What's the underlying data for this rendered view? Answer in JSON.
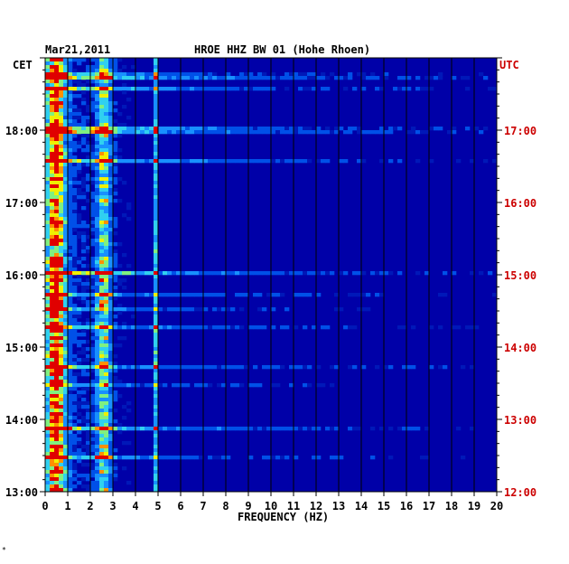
{
  "chart_data": {
    "type": "heatmap",
    "date": "Mar21,2011",
    "title": "HROE HHZ BW 01 (Hohe Rhoen)",
    "left_timezone": "CET",
    "right_timezone": "UTC",
    "xlabel": "FREQUENCY (HZ)",
    "x_ticks": [
      "0",
      "1",
      "2",
      "3",
      "4",
      "5",
      "6",
      "7",
      "8",
      "9",
      "10",
      "11",
      "12",
      "13",
      "14",
      "15",
      "16",
      "17",
      "18",
      "19",
      "20"
    ],
    "xlim": [
      0,
      20
    ],
    "left_ticks": [
      "13:00",
      "14:00",
      "15:00",
      "16:00",
      "17:00",
      "18:00"
    ],
    "right_ticks": [
      "12:00",
      "13:00",
      "14:00",
      "15:00",
      "16:00",
      "17:00"
    ],
    "time_range_cet": [
      "13:00",
      "18:50"
    ],
    "grid": true,
    "colors": {
      "background": "#0000a8",
      "low": "#0030d0",
      "mid": "#40a0ff",
      "high": "#f0f000",
      "peak": "#e00000",
      "utc_label": "#cc0000"
    },
    "dominant_bands_hz": [
      0.5,
      2.6,
      4.9
    ]
  },
  "footnote": "*"
}
